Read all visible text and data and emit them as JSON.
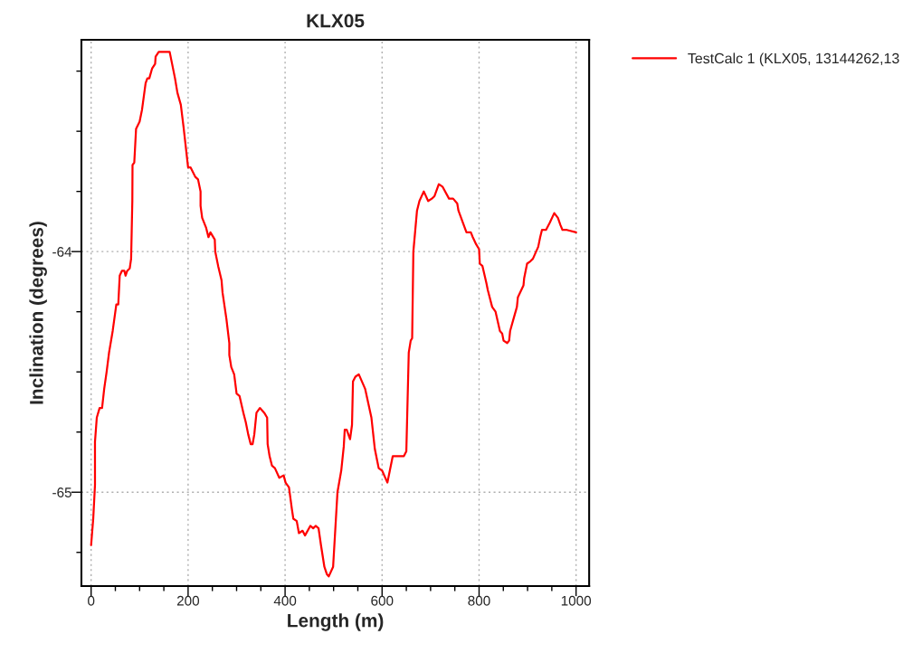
{
  "chart_data": {
    "type": "line",
    "title": "KLX05",
    "xlabel": "Length (m)",
    "ylabel": "Inclination (degrees)",
    "xlim": [
      -20,
      1027
    ],
    "ylim": [
      -65.39,
      -63.12
    ],
    "xticks": [
      0,
      {
        "value": 50,
        "label": null
      },
      {
        "value": 100,
        "label": null
      },
      {
        "value": 150,
        "label": null
      },
      200,
      {
        "value": 250,
        "label": null
      },
      {
        "value": 300,
        "label": null
      },
      {
        "value": 350,
        "label": null
      },
      400,
      {
        "value": 450,
        "label": null
      },
      {
        "value": 500,
        "label": null
      },
      {
        "value": 550,
        "label": null
      },
      600,
      {
        "value": 650,
        "label": null
      },
      {
        "value": 700,
        "label": null
      },
      {
        "value": 750,
        "label": null
      },
      800,
      {
        "value": 850,
        "label": null
      },
      {
        "value": 900,
        "label": null
      },
      {
        "value": 950,
        "label": null
      },
      1000
    ],
    "yticks": [
      {
        "value": -63.25,
        "label": null
      },
      {
        "value": -63.5,
        "label": null
      },
      {
        "value": -63.75,
        "label": null
      },
      -64,
      {
        "value": -64.25,
        "label": null
      },
      {
        "value": -64.5,
        "label": null
      },
      {
        "value": -64.75,
        "label": null
      },
      -65,
      {
        "value": -65.25,
        "label": null
      }
    ],
    "grid": true,
    "legend": "top right",
    "marker": "none",
    "line_style": "solid",
    "series": [
      {
        "name": "TestCalc 1 (KLX05, 13144262,13",
        "color": "#ff0000",
        "x": [
          0,
          4.4,
          8,
          8,
          11.7,
          17.5,
          22.6,
          27,
          32,
          37,
          44.5,
          52,
          56,
          59,
          63.5,
          68.6,
          71,
          74.5,
          79.6,
          82.5,
          85,
          85.4,
          89,
          92.7,
          100,
          105,
          112.4,
          116,
          120,
          125.6,
          132,
          133,
          139.4,
          149,
          156,
          162,
          167,
          173,
          178,
          185,
          190.5,
          192.7,
          200,
          205,
          215,
          220.5,
          225.7,
          225.7,
          229,
          237,
          242,
          246,
          255,
          256,
          262,
          269,
          271,
          279,
          285,
          285,
          289,
          295,
          300,
          306,
          314,
          319,
          324,
          329,
          333,
          336.5,
          341,
          348,
          357,
          363,
          364,
          368,
          373,
          379,
          388,
          397,
          401,
          408,
          410,
          414,
          417,
          424,
          428.5,
          436,
          441,
          452,
          458,
          463,
          469,
          474,
          481,
          486,
          490,
          499,
          508,
          515.8,
          521,
          523,
          527,
          534,
          538,
          540,
          545,
          552,
          565,
          578,
          585,
          593,
          600,
          611,
          616,
          622,
          629,
          645,
          650,
          655,
          659,
          662,
          664.5,
          672,
          677,
          686,
          695,
          702.6,
          708,
          717,
          724.5,
          738,
          746.5,
          755,
          757.5,
          774,
          783,
          787,
          794,
          800,
          801.5,
          807,
          815,
          818,
          827,
          834,
          843,
          847.6,
          850.5,
          858,
          862,
          864,
          871,
          878,
          880,
          891.6,
          893,
          899,
          906,
          911,
          922,
          926,
          929.7,
          938,
          945.8,
          955,
          962.6,
          967.8,
          972,
          981,
          1000
        ],
        "values": [
          -65.22,
          -65.11,
          -64.97,
          -64.79,
          -64.69,
          -64.65,
          -64.65,
          -64.57,
          -64.5,
          -64.42,
          -64.33,
          -64.22,
          -64.22,
          -64.1,
          -64.08,
          -64.08,
          -64.1,
          -64.08,
          -64.07,
          -64.03,
          -63.79,
          -63.64,
          -63.63,
          -63.49,
          -63.46,
          -63.41,
          -63.3,
          -63.28,
          -63.28,
          -63.24,
          -63.22,
          -63.19,
          -63.17,
          -63.17,
          -63.17,
          -63.17,
          -63.22,
          -63.28,
          -63.34,
          -63.39,
          -63.48,
          -63.52,
          -63.65,
          -63.65,
          -63.69,
          -63.7,
          -63.75,
          -63.81,
          -63.86,
          -63.9,
          -63.94,
          -63.92,
          -63.95,
          -64.0,
          -64.06,
          -64.12,
          -64.17,
          -64.28,
          -64.38,
          -64.43,
          -64.48,
          -64.51,
          -64.59,
          -64.6,
          -64.67,
          -64.71,
          -64.76,
          -64.8,
          -64.8,
          -64.76,
          -64.67,
          -64.65,
          -64.67,
          -64.69,
          -64.8,
          -64.85,
          -64.89,
          -64.9,
          -64.94,
          -64.93,
          -64.96,
          -64.98,
          -65.01,
          -65.07,
          -65.11,
          -65.12,
          -65.17,
          -65.16,
          -65.18,
          -65.14,
          -65.15,
          -65.14,
          -65.15,
          -65.22,
          -65.31,
          -65.34,
          -65.35,
          -65.31,
          -65.0,
          -64.91,
          -64.81,
          -64.74,
          -64.74,
          -64.78,
          -64.72,
          -64.54,
          -64.52,
          -64.51,
          -64.57,
          -64.69,
          -64.82,
          -64.9,
          -64.91,
          -64.96,
          -64.91,
          -64.85,
          -64.85,
          -64.85,
          -64.83,
          -64.42,
          -64.37,
          -64.36,
          -64.0,
          -63.83,
          -63.79,
          -63.75,
          -63.79,
          -63.78,
          -63.77,
          -63.72,
          -63.73,
          -63.78,
          -63.78,
          -63.8,
          -63.83,
          -63.92,
          -63.92,
          -63.94,
          -63.97,
          -63.99,
          -64.05,
          -64.06,
          -64.13,
          -64.16,
          -64.23,
          -64.25,
          -64.33,
          -64.34,
          -64.37,
          -64.38,
          -64.37,
          -64.33,
          -64.28,
          -64.23,
          -64.19,
          -64.14,
          -64.11,
          -64.05,
          -64.04,
          -64.03,
          -63.98,
          -63.94,
          -63.91,
          -63.91,
          -63.88,
          -63.84,
          -63.86,
          -63.89,
          -63.91,
          -63.91,
          -63.92
        ]
      }
    ]
  }
}
